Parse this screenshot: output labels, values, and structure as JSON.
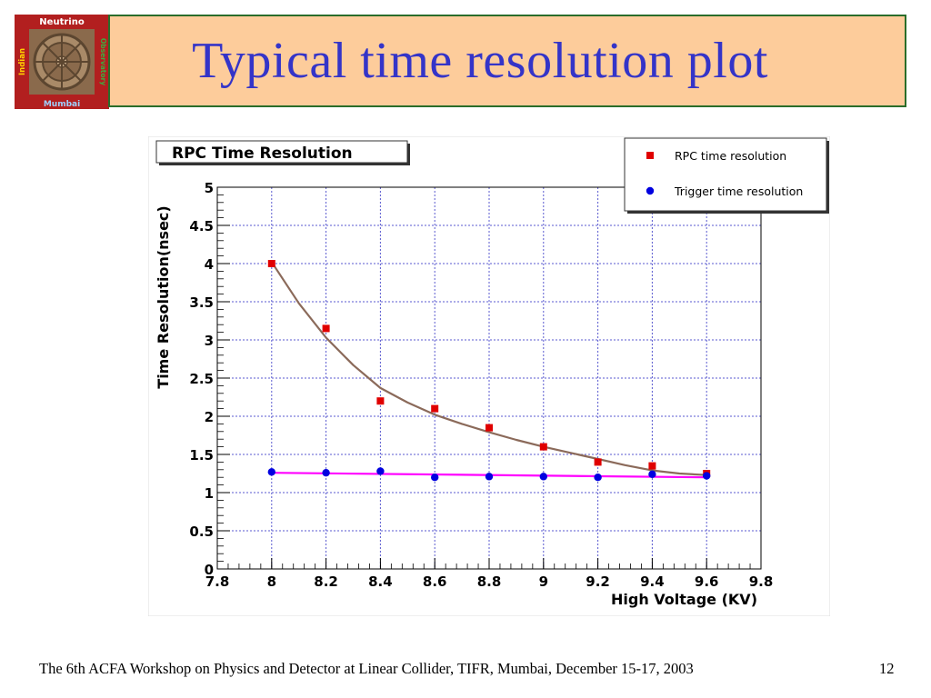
{
  "slide": {
    "title": "Typical time resolution plot",
    "footer": "The 6th ACFA Workshop on Physics and Detector at Linear Collider, TIFR, Mumbai, December 15-17, 2003",
    "page_number": "12"
  },
  "logo": {
    "top_text": "Neutrino",
    "left_text": "Indian",
    "right_text": "Observatory",
    "bottom_text": "Mumbai"
  },
  "colors": {
    "rpc": "#e00000",
    "trigger": "#0000e0",
    "rpc_fit": "#8b6a5a",
    "trigger_fit": "#ff00ff",
    "grid": "#5a5ad0"
  },
  "chart_data": {
    "type": "scatter",
    "title": "RPC Time Resolution",
    "xlabel": "High Voltage (KV)",
    "ylabel": "Time Resolution(nsec)",
    "xlim": [
      7.8,
      9.8
    ],
    "ylim": [
      0,
      5
    ],
    "xticks": [
      7.8,
      8,
      8.2,
      8.4,
      8.6,
      8.8,
      9,
      9.2,
      9.4,
      9.6,
      9.8
    ],
    "xtick_labels": [
      "7.8",
      "8",
      "8.2",
      "8.4",
      "8.6",
      "8.8",
      "9",
      "9.2",
      "9.4",
      "9.6",
      "9.8"
    ],
    "yticks": [
      0,
      0.5,
      1,
      1.5,
      2,
      2.5,
      3,
      3.5,
      4,
      4.5,
      5
    ],
    "ytick_labels": [
      "0",
      "0.5",
      "1",
      "1.5",
      "2",
      "2.5",
      "3",
      "3.5",
      "4",
      "4.5",
      "5"
    ],
    "grid": true,
    "legend_position": "top-right",
    "series": [
      {
        "name": "RPC time resolution",
        "marker": "square",
        "x": [
          8.0,
          8.2,
          8.4,
          8.6,
          8.8,
          9.0,
          9.2,
          9.4,
          9.6
        ],
        "y": [
          4.0,
          3.15,
          2.2,
          2.1,
          1.85,
          1.6,
          1.4,
          1.35,
          1.25
        ]
      },
      {
        "name": "Trigger time resolution",
        "marker": "circle",
        "x": [
          8.0,
          8.2,
          8.4,
          8.6,
          8.8,
          9.0,
          9.2,
          9.4,
          9.6
        ],
        "y": [
          1.27,
          1.26,
          1.28,
          1.2,
          1.21,
          1.21,
          1.2,
          1.24,
          1.22
        ]
      }
    ],
    "fits": [
      {
        "name": "RPC fit",
        "x": [
          8.0,
          8.1,
          8.2,
          8.3,
          8.4,
          8.5,
          8.6,
          8.7,
          8.8,
          8.9,
          9.0,
          9.1,
          9.2,
          9.3,
          9.4,
          9.5,
          9.6
        ],
        "y": [
          4.02,
          3.48,
          3.03,
          2.67,
          2.37,
          2.18,
          2.02,
          1.9,
          1.79,
          1.69,
          1.6,
          1.52,
          1.44,
          1.36,
          1.29,
          1.25,
          1.23
        ]
      },
      {
        "name": "Trigger fit",
        "x": [
          8.0,
          9.6
        ],
        "y": [
          1.26,
          1.2
        ]
      }
    ]
  }
}
